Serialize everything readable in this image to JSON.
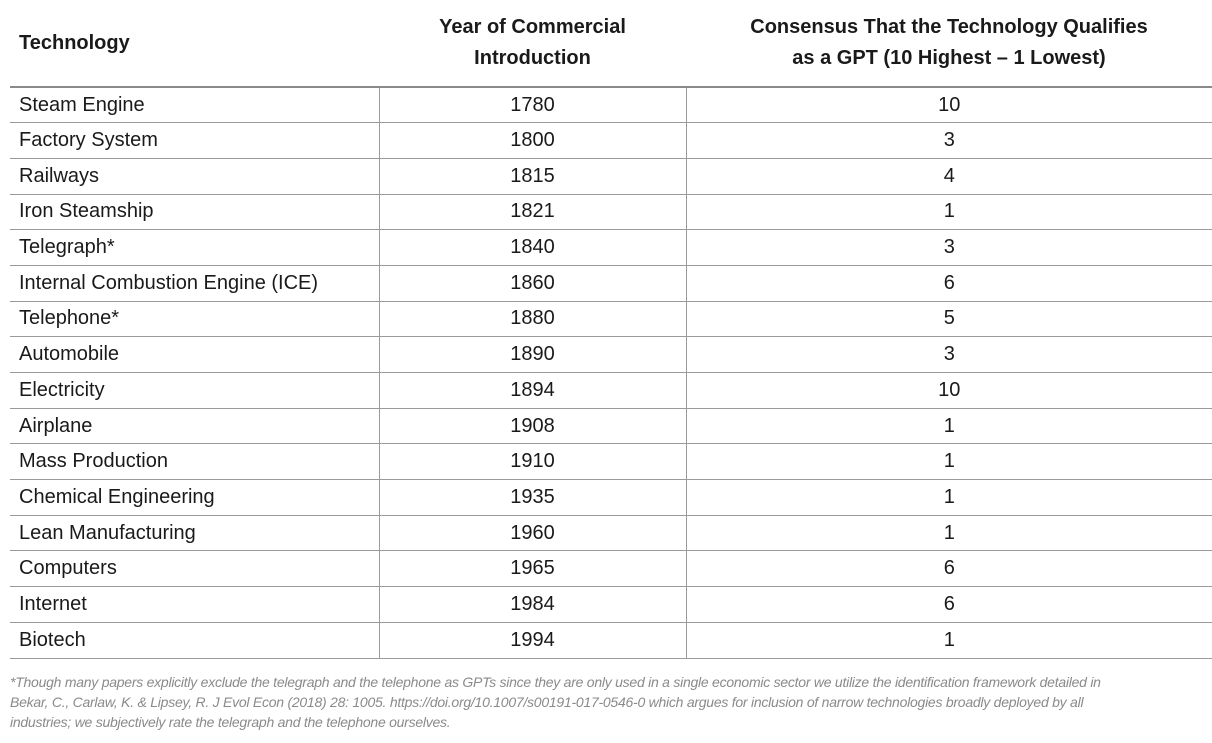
{
  "table": {
    "headers": {
      "technology": "Technology",
      "year_line1": "Year of Commercial",
      "year_line2": "Introduction",
      "consensus_line1": "Consensus That the Technology Qualifies",
      "consensus_line2": "as a GPT (10 Highest – 1 Lowest)"
    },
    "rows": [
      {
        "technology": "Steam Engine",
        "year": "1780",
        "consensus": "10"
      },
      {
        "technology": "Factory System",
        "year": "1800",
        "consensus": "3"
      },
      {
        "technology": "Railways",
        "year": "1815",
        "consensus": "4"
      },
      {
        "technology": "Iron Steamship",
        "year": "1821",
        "consensus": "1"
      },
      {
        "technology": "Telegraph*",
        "year": "1840",
        "consensus": "3"
      },
      {
        "technology": "Internal Combustion Engine (ICE)",
        "year": "1860",
        "consensus": "6"
      },
      {
        "technology": "Telephone*",
        "year": "1880",
        "consensus": "5"
      },
      {
        "technology": "Automobile",
        "year": "1890",
        "consensus": "3"
      },
      {
        "technology": "Electricity",
        "year": "1894",
        "consensus": "10"
      },
      {
        "technology": "Airplane",
        "year": "1908",
        "consensus": "1"
      },
      {
        "technology": "Mass Production",
        "year": "1910",
        "consensus": "1"
      },
      {
        "technology": "Chemical Engineering",
        "year": "1935",
        "consensus": "1"
      },
      {
        "technology": "Lean Manufacturing",
        "year": "1960",
        "consensus": "1"
      },
      {
        "technology": "Computers",
        "year": "1965",
        "consensus": "6"
      },
      {
        "technology": "Internet",
        "year": "1984",
        "consensus": "6"
      },
      {
        "technology": "Biotech",
        "year": "1994",
        "consensus": "1"
      }
    ]
  },
  "footnote": {
    "line1": "*Though many papers explicitly exclude the telegraph and the telephone as GPTs since they are only used in a single economic sector we utilize the identification framework detailed in",
    "line2": "Bekar, C., Carlaw, K. & Lipsey, R. J Evol Econ (2018) 28: 1005. https://doi.org/10.1007/s00191-017-0546-0 which argues for inclusion of narrow technologies broadly deployed by all",
    "line3": "industries; we subjectively rate the telegraph and the telephone ourselves."
  }
}
